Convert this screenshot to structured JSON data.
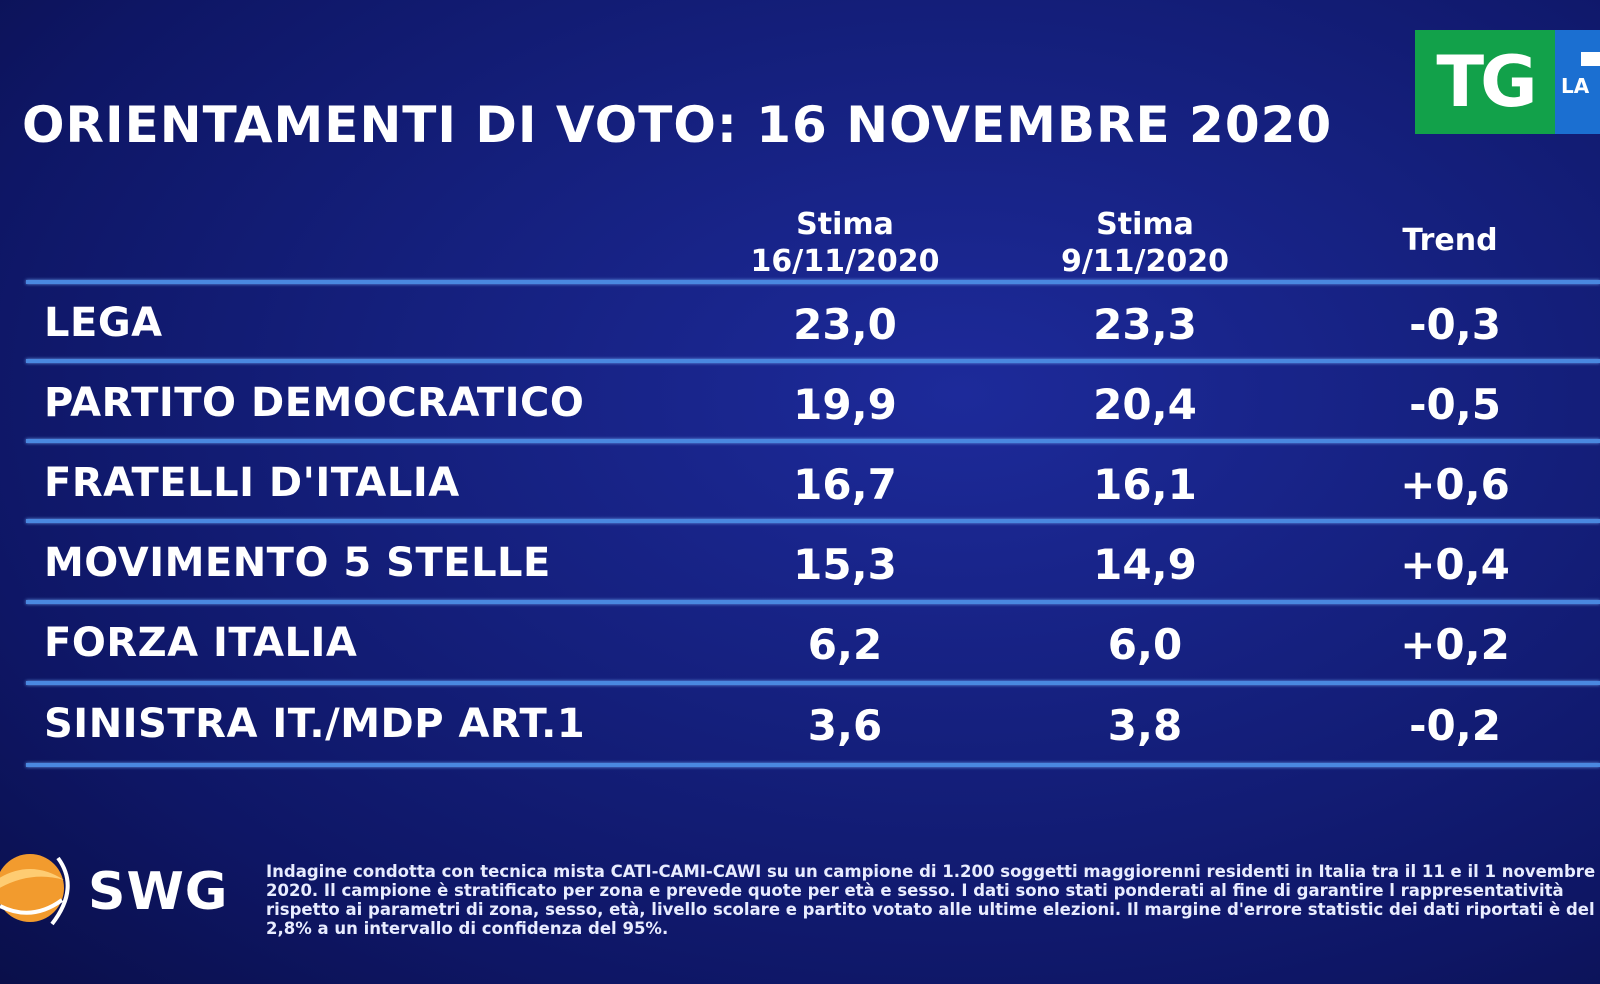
{
  "header": {
    "title": "ORIENTAMENTI DI VOTO: 16 NOVEMBRE 2020",
    "logo_tg": "TG",
    "logo_la": "LA"
  },
  "table": {
    "columns": [
      {
        "line1": "Stima",
        "line2": "16/11/2020"
      },
      {
        "line1": "Stima",
        "line2": "9/11/2020"
      },
      {
        "line1": "Trend",
        "line2": ""
      }
    ],
    "rows": [
      {
        "party": "LEGA",
        "stima_16": "23,0",
        "stima_9": "23,3",
        "trend": "-0,3"
      },
      {
        "party": "PARTITO DEMOCRATICO",
        "stima_16": "19,9",
        "stima_9": "20,4",
        "trend": "-0,5"
      },
      {
        "party": "FRATELLI D'ITALIA",
        "stima_16": "16,7",
        "stima_9": "16,1",
        "trend": "+0,6"
      },
      {
        "party": "MOVIMENTO 5 STELLE",
        "stima_16": "15,3",
        "stima_9": "14,9",
        "trend": "+0,4"
      },
      {
        "party": "FORZA ITALIA",
        "stima_16": "6,2",
        "stima_9": "6,0",
        "trend": "+0,2"
      },
      {
        "party": "SINISTRA IT./MDP ART.1",
        "stima_16": "3,6",
        "stima_9": "3,8",
        "trend": "-0,2"
      }
    ]
  },
  "footer": {
    "brand": "SWG",
    "note": "Indagine condotta con tecnica mista CATI-CAMI-CAWI su un campione di 1.200 soggetti maggiorenni residenti in Italia tra il 11 e il 1 novembre 2020. Il campione è stratificato per zona e prevede quote per età e sesso. I dati sono stati ponderati al fine di garantire l rappresentatività rispetto ai parametri di zona, sesso, età, livello scolare e partito votato alle ultime elezioni. Il margine d'errore statistic dei dati riportati è del 2,8% a un intervallo di confidenza del 95%."
  },
  "colors": {
    "background": "#15207e",
    "rule": "#4a88e0",
    "tg_green": "#12a14a",
    "rai_blue": "#1b6fd1",
    "swg_orange": "#f29b2e"
  }
}
